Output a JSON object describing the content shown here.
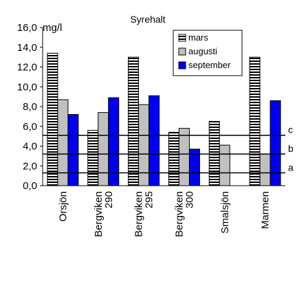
{
  "chart_data": {
    "type": "bar",
    "title": "Syrehalt",
    "ylabel": "mg/l",
    "ylim": [
      0,
      16
    ],
    "yticks": [
      "0,0",
      "2,0",
      "4,0",
      "6,0",
      "8,0",
      "10,0",
      "12,0",
      "14,0",
      "16,0"
    ],
    "ytick_values": [
      0,
      2,
      4,
      6,
      8,
      10,
      12,
      14,
      16
    ],
    "grid": false,
    "legend_position": "top-right",
    "categories": [
      {
        "line1": "Orsjön",
        "line2": ""
      },
      {
        "line1": "Bergviken",
        "line2": "290"
      },
      {
        "line1": "Bergviken",
        "line2": "295"
      },
      {
        "line1": "Bergviken",
        "line2": "300"
      },
      {
        "line1": "Smalsjön",
        "line2": ""
      },
      {
        "line1": "Marmen",
        "line2": ""
      }
    ],
    "series": [
      {
        "name": "mars",
        "pattern": "horizontal-stripes",
        "color": "#ffffff",
        "values": [
          13.4,
          5.6,
          13.0,
          5.4,
          6.5,
          13.0
        ]
      },
      {
        "name": "augusti",
        "pattern": "solid",
        "color": "#c0c0c0",
        "values": [
          8.7,
          7.4,
          8.2,
          5.8,
          4.1,
          3.2
        ]
      },
      {
        "name": "september",
        "pattern": "solid",
        "color": "#0000ee",
        "values": [
          7.2,
          8.9,
          9.1,
          3.7,
          null,
          8.6
        ]
      }
    ],
    "reference_lines": [
      {
        "label": "c",
        "value": 5.1
      },
      {
        "label": "b",
        "value": 3.2
      },
      {
        "label": "a",
        "value": 1.3
      }
    ]
  }
}
